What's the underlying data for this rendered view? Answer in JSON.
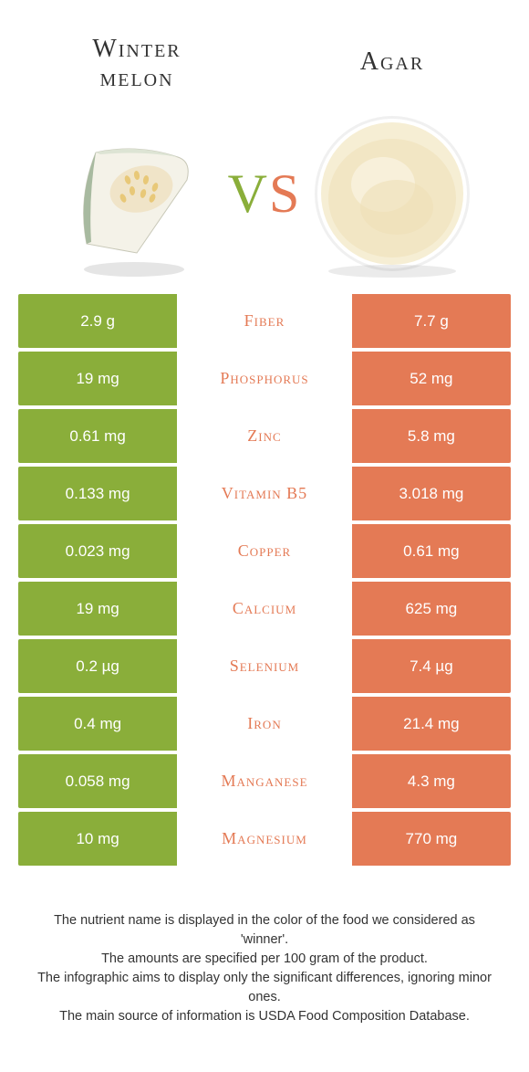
{
  "header": {
    "left_title_line1": "Winter",
    "left_title_line2": "melon",
    "right_title": "Agar"
  },
  "vs": {
    "v": "V",
    "s": "S"
  },
  "colors": {
    "left": "#8aae3a",
    "right": "#e47a55",
    "background": "#ffffff",
    "text": "#333333"
  },
  "rows": [
    {
      "left": "2.9 g",
      "label": "Fiber",
      "right": "7.7 g",
      "winner": "right"
    },
    {
      "left": "19 mg",
      "label": "Phosphorus",
      "right": "52 mg",
      "winner": "right"
    },
    {
      "left": "0.61 mg",
      "label": "Zinc",
      "right": "5.8 mg",
      "winner": "right"
    },
    {
      "left": "0.133 mg",
      "label": "Vitamin B5",
      "right": "3.018 mg",
      "winner": "right"
    },
    {
      "left": "0.023 mg",
      "label": "Copper",
      "right": "0.61 mg",
      "winner": "right"
    },
    {
      "left": "19 mg",
      "label": "Calcium",
      "right": "625 mg",
      "winner": "right"
    },
    {
      "left": "0.2 µg",
      "label": "Selenium",
      "right": "7.4 µg",
      "winner": "right"
    },
    {
      "left": "0.4 mg",
      "label": "Iron",
      "right": "21.4 mg",
      "winner": "right"
    },
    {
      "left": "0.058 mg",
      "label": "Manganese",
      "right": "4.3 mg",
      "winner": "right"
    },
    {
      "left": "10 mg",
      "label": "Magnesium",
      "right": "770 mg",
      "winner": "right"
    }
  ],
  "footer": {
    "line1": "The nutrient name is displayed in the color of the food we considered as 'winner'.",
    "line2": "The amounts are specified per 100 gram of the product.",
    "line3": "The infographic aims to display only the significant differences, ignoring minor ones.",
    "line4": "The main source of information is USDA Food Composition Database."
  }
}
